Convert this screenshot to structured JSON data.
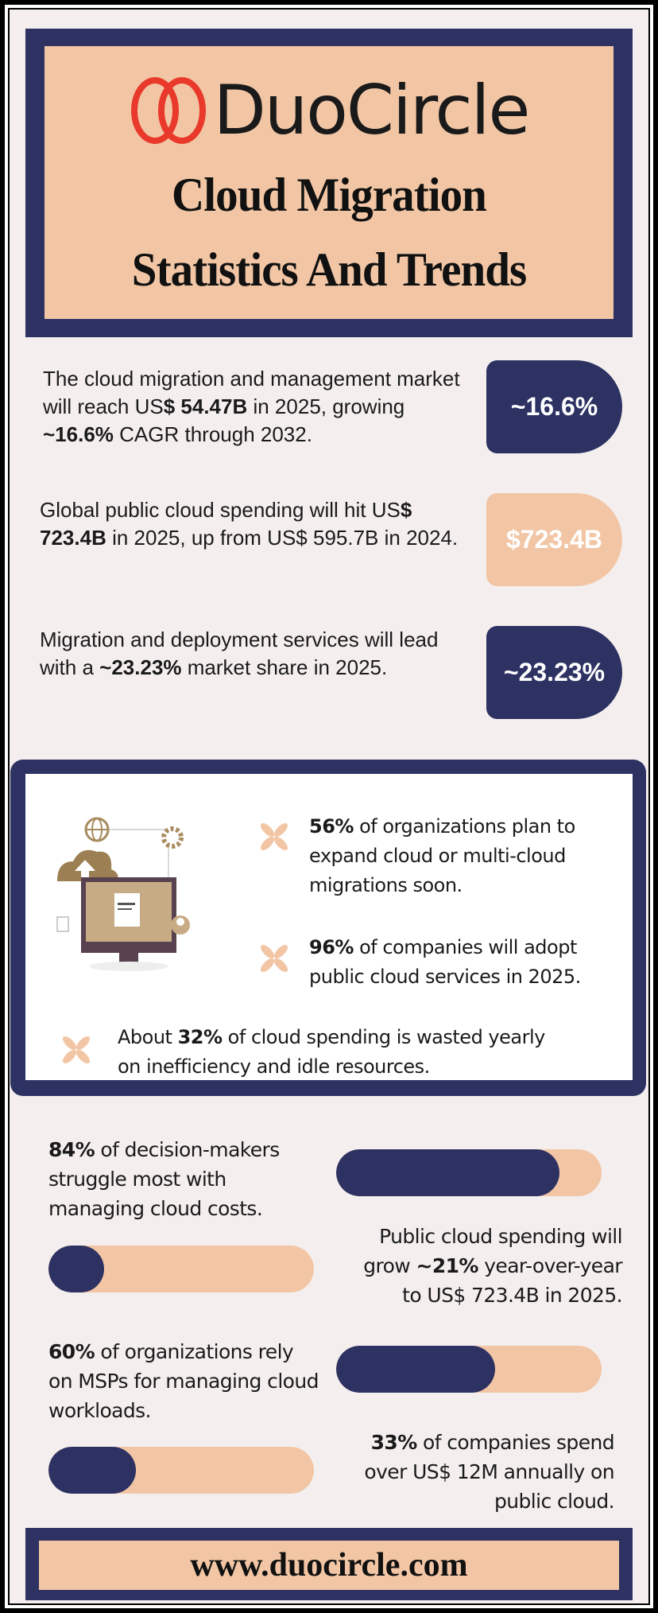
{
  "brand": {
    "name": "DuoCircle",
    "logo_color": "#e8392b"
  },
  "colors": {
    "navy": "#2d3263",
    "peach": "#f2c6a5",
    "background": "#f4efee"
  },
  "title": {
    "line1": "Cloud Migration",
    "line2": "Statistics And Trends"
  },
  "stats": [
    {
      "pre": "The cloud migration and management market will reach US",
      "bold1": "$ 54.47B",
      "mid": " in 2025, growing ",
      "bold2": "~16.6%",
      "post": " CAGR through 2032.",
      "badge": "~16.6%"
    },
    {
      "pre": "Global public cloud spending will hit US",
      "bold1": "$ 723.4B",
      "mid": " in 2025, up from US$ 595.7B in 2024.",
      "bold2": "",
      "post": "",
      "badge": "$723.4B"
    },
    {
      "pre": "Migration and deployment services will lead with a ",
      "bold1": "~23.23%",
      "mid": " market share in 2025.",
      "bold2": "",
      "post": "",
      "badge": "~23.23%"
    }
  ],
  "box_items": [
    {
      "pre": "",
      "bold": "56%",
      "post": " of organizations plan to expand cloud or multi-cloud migrations soon."
    },
    {
      "pre": "",
      "bold": "96%",
      "post": " of companies will adopt public cloud services in 2025."
    },
    {
      "pre": "About ",
      "bold": "32%",
      "post": " of cloud spending is wasted yearly on inefficiency and idle resources."
    }
  ],
  "bars": [
    {
      "pre": "",
      "bold": "84%",
      "post": " of decision-makers struggle most with managing cloud costs.",
      "value": 84
    },
    {
      "pre": "Public cloud spending will grow ",
      "bold": "~21%",
      "post": " year-over-year to US$ 723.4B in 2025.",
      "value": 21
    },
    {
      "pre": "",
      "bold": "60%",
      "post": " of organizations rely on MSPs for managing cloud workloads.",
      "value": 60
    },
    {
      "pre": "",
      "bold": "33%",
      "post": " of companies spend over US$ 12M annually on public cloud.",
      "value": 33
    }
  ],
  "footer": {
    "url": "www.duocircle.com"
  }
}
